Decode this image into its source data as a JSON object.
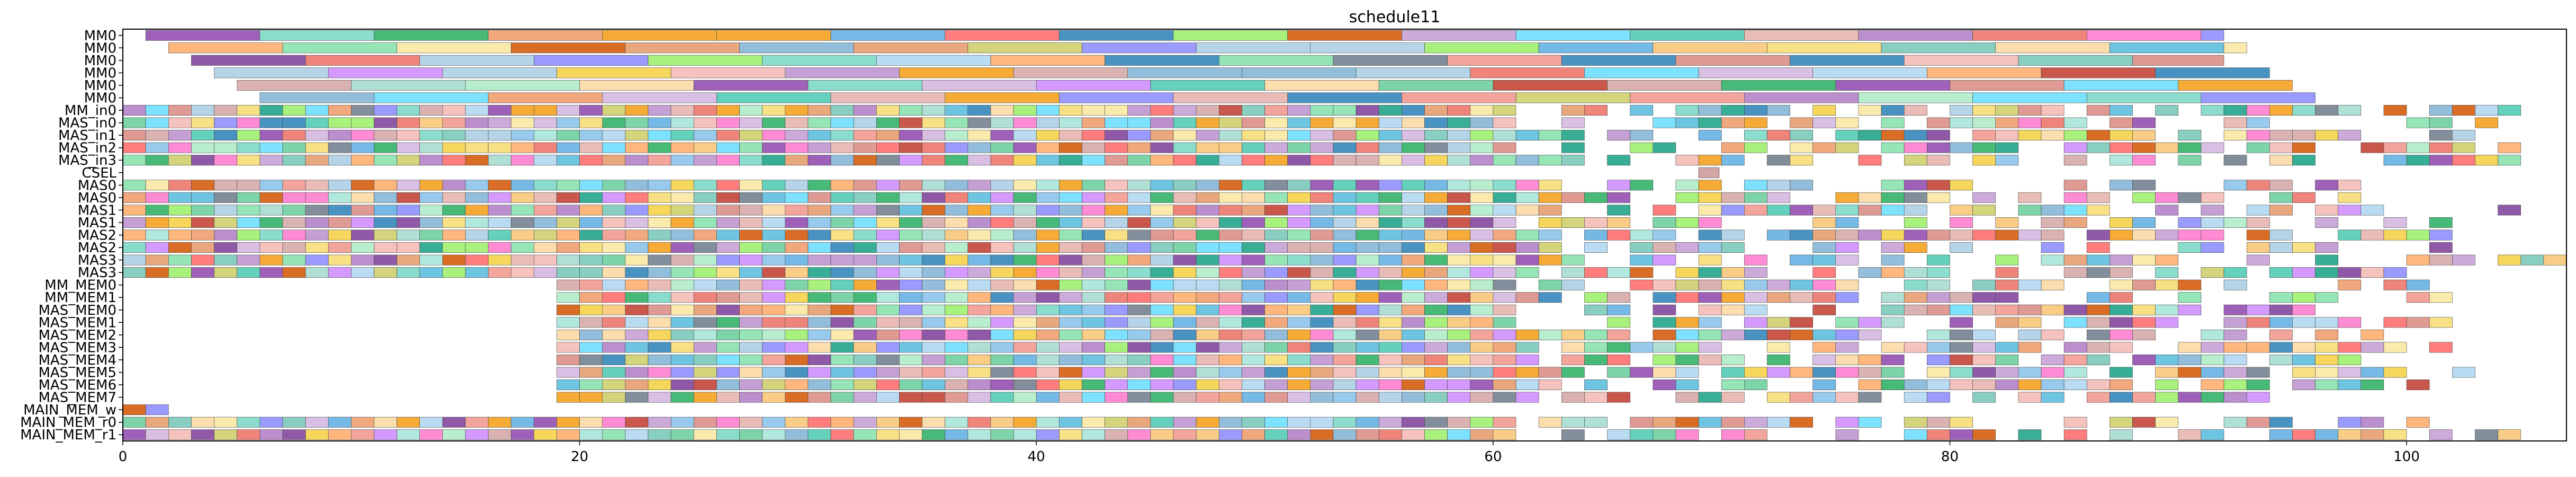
{
  "chart_data": {
    "type": "gantt",
    "title": "schedule11",
    "xlabel": "",
    "ylabel": "",
    "xlim": [
      0,
      107
    ],
    "x_ticks": [
      0,
      20,
      40,
      60,
      80,
      100
    ],
    "rows": [
      "MM0",
      "MM0",
      "MM0",
      "MM0",
      "MM0",
      "MM0",
      "MM_in0",
      "MAS_in0",
      "MAS_in1",
      "MAS_in2",
      "MAS_in3",
      "CSEL",
      "MAS0",
      "MAS0",
      "MAS1",
      "MAS1",
      "MAS2",
      "MAS2",
      "MAS3",
      "MAS3",
      "MM_MEM0",
      "MM_MEM1",
      "MAS_MEM0",
      "MAS_MEM1",
      "MAS_MEM2",
      "MAS_MEM3",
      "MAS_MEM4",
      "MAS_MEM5",
      "MAS_MEM6",
      "MAS_MEM7",
      "MAIN_MEM_w",
      "MAIN_MEM_r0",
      "MAIN_MEM_r1"
    ],
    "row_spans": [
      [
        [
          1,
          92
        ]
      ],
      [
        [
          2,
          93
        ]
      ],
      [
        [
          3,
          92
        ]
      ],
      [
        [
          4,
          94
        ]
      ],
      [
        [
          5,
          95
        ]
      ],
      [
        [
          6,
          96
        ]
      ],
      [
        [
          0,
          107
        ]
      ],
      [
        [
          0,
          104
        ]
      ],
      [
        [
          0,
          103
        ]
      ],
      [
        [
          0,
          105
        ]
      ],
      [
        [
          0,
          105
        ]
      ],
      [
        [
          69,
          69.9
        ]
      ],
      [
        [
          0,
          98
        ]
      ],
      [
        [
          0,
          99
        ]
      ],
      [
        [
          0,
          105
        ]
      ],
      [
        [
          0,
          103
        ]
      ],
      [
        [
          0,
          103
        ]
      ],
      [
        [
          0,
          102
        ]
      ],
      [
        [
          0,
          107
        ]
      ],
      [
        [
          0,
          100
        ]
      ],
      [
        [
          19,
          101
        ]
      ],
      [
        [
          19,
          102
        ]
      ],
      [
        [
          19,
          96
        ]
      ],
      [
        [
          19,
          103
        ]
      ],
      [
        [
          19,
          100
        ]
      ],
      [
        [
          19,
          102
        ]
      ],
      [
        [
          19,
          98
        ]
      ],
      [
        [
          19,
          104
        ]
      ],
      [
        [
          19,
          101
        ]
      ],
      [
        [
          19,
          94
        ]
      ],
      [
        [
          0,
          2
        ]
      ],
      [
        [
          0,
          101
        ]
      ],
      [
        [
          0,
          107
        ]
      ]
    ],
    "task_duration": 5,
    "short_task_duration": 1
  }
}
